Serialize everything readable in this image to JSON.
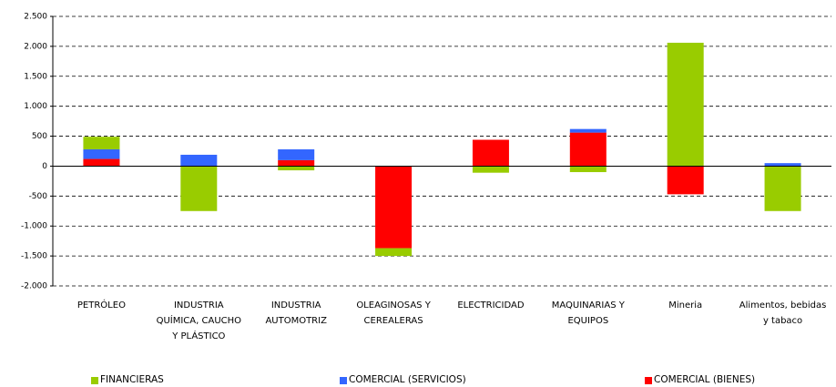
{
  "chart_data": {
    "type": "bar",
    "stacked": true,
    "categories": [
      "PETRÓLEO",
      "INDUSTRIA QUÍMICA, CAUCHO Y PLÁSTICO",
      "INDUSTRIA AUTOMOTRIZ",
      "OLEAGINOSAS Y CEREALERAS",
      "ELECTRICIDAD",
      "MAQUINARIAS Y EQUIPOS",
      "Mineria",
      "Alimentos, bebidas y tabaco"
    ],
    "series": [
      {
        "name": "FINANCIERAS",
        "color": "#99cc00",
        "values": [
          210,
          -750,
          -70,
          -130,
          -110,
          -100,
          2060,
          -750
        ]
      },
      {
        "name": "COMERCIAL (SERVICIOS)",
        "color": "#3366ff",
        "values": [
          160,
          190,
          180,
          0,
          0,
          60,
          0,
          50
        ]
      },
      {
        "name": "COMERCIAL (BIENES)",
        "color": "#ff0000",
        "values": [
          120,
          0,
          100,
          -1370,
          440,
          560,
          -470,
          0
        ]
      }
    ],
    "ylim": [
      -2000,
      2500
    ],
    "yticks": [
      {
        "value": -2000,
        "label": "-2.000"
      },
      {
        "value": -1500,
        "label": "-1.500"
      },
      {
        "value": -1000,
        "label": "-1.000"
      },
      -500,
      0,
      500,
      {
        "value": 1000,
        "label": "1.000"
      },
      {
        "value": 1500,
        "label": "1.500"
      },
      {
        "value": 2000,
        "label": "2.000"
      },
      {
        "value": 2500,
        "label": "2.500"
      }
    ],
    "grid": true
  }
}
